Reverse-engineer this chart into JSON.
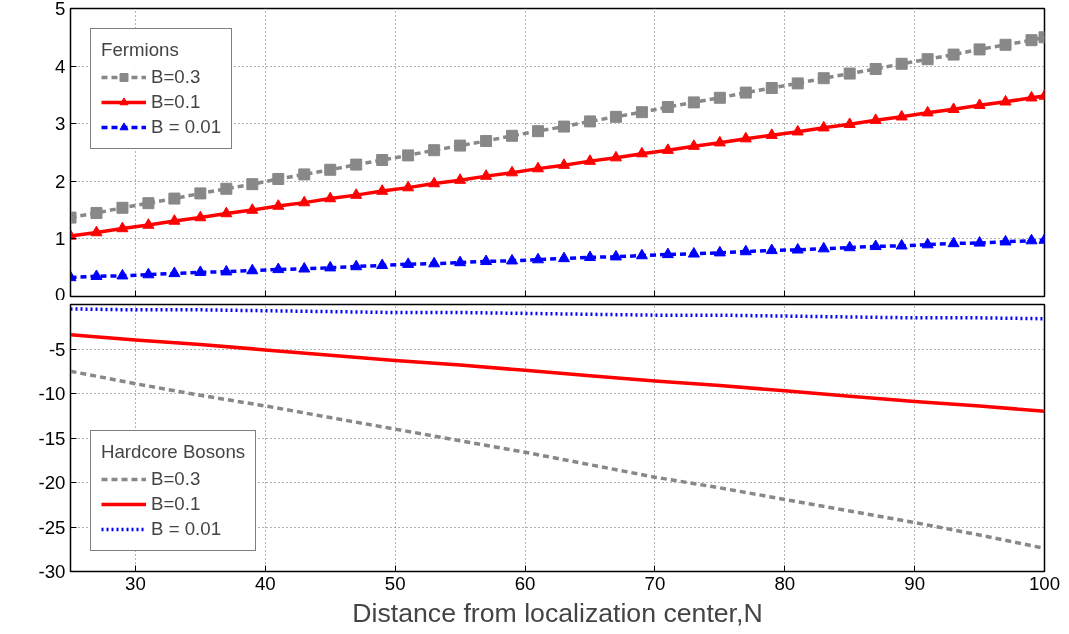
{
  "chart_data": [
    {
      "type": "line",
      "legend_title": "Fermions",
      "legend": "top left",
      "grid": true,
      "tick_labels": "y",
      "x": [
        25,
        27,
        29,
        31,
        33,
        35,
        37,
        39,
        41,
        43,
        45,
        47,
        49,
        51,
        53,
        55,
        57,
        59,
        61,
        63,
        65,
        67,
        69,
        71,
        73,
        75,
        77,
        79,
        81,
        83,
        85,
        87,
        89,
        91,
        93,
        95,
        97,
        99,
        100
      ],
      "xlim": [
        25,
        100
      ],
      "xticks": [
        30,
        40,
        50,
        60,
        70,
        80,
        90,
        100
      ],
      "ylim": [
        0,
        5
      ],
      "yticks": [
        0,
        1,
        2,
        3,
        4,
        5
      ],
      "series": [
        {
          "name": "B=0.3",
          "color": "#888888",
          "marker": "square",
          "line_style": "dashed",
          "values": [
            1.37,
            1.45,
            1.54,
            1.62,
            1.7,
            1.79,
            1.87,
            1.95,
            2.04,
            2.12,
            2.2,
            2.29,
            2.37,
            2.45,
            2.54,
            2.62,
            2.7,
            2.79,
            2.87,
            2.95,
            3.04,
            3.12,
            3.2,
            3.29,
            3.37,
            3.45,
            3.54,
            3.62,
            3.7,
            3.79,
            3.87,
            3.95,
            4.04,
            4.12,
            4.2,
            4.29,
            4.37,
            4.45,
            4.5
          ]
        },
        {
          "name": "B=0.1",
          "color": "#ff0000",
          "marker": "triangle",
          "line_style": "solid",
          "values": [
            1.05,
            1.11,
            1.18,
            1.24,
            1.31,
            1.37,
            1.44,
            1.5,
            1.57,
            1.63,
            1.7,
            1.76,
            1.83,
            1.89,
            1.96,
            2.02,
            2.09,
            2.15,
            2.22,
            2.28,
            2.35,
            2.41,
            2.48,
            2.54,
            2.61,
            2.67,
            2.74,
            2.8,
            2.86,
            2.93,
            2.99,
            3.06,
            3.12,
            3.19,
            3.25,
            3.32,
            3.38,
            3.45,
            3.48
          ]
        },
        {
          "name": "B = 0.01",
          "color": "#0000ff",
          "marker": "triangle",
          "line_style": "dashed",
          "values": [
            0.33,
            0.35,
            0.36,
            0.38,
            0.4,
            0.42,
            0.43,
            0.45,
            0.47,
            0.48,
            0.5,
            0.52,
            0.54,
            0.56,
            0.57,
            0.59,
            0.61,
            0.62,
            0.64,
            0.66,
            0.68,
            0.69,
            0.71,
            0.73,
            0.74,
            0.76,
            0.78,
            0.8,
            0.81,
            0.83,
            0.85,
            0.87,
            0.88,
            0.9,
            0.92,
            0.93,
            0.95,
            0.97,
            0.98
          ]
        }
      ]
    },
    {
      "type": "line",
      "legend_title": "Hardcore Bosons",
      "legend": "bottom left",
      "grid": true,
      "xlabel": "Distance from localization center,N",
      "x": [
        25,
        30,
        35,
        40,
        45,
        50,
        55,
        60,
        65,
        70,
        75,
        80,
        85,
        90,
        95,
        100
      ],
      "xlim": [
        25,
        100
      ],
      "xticks": [
        30,
        40,
        50,
        60,
        70,
        80,
        90,
        100
      ],
      "ylim": [
        -30,
        0
      ],
      "yticks": [
        -30,
        -25,
        -20,
        -15,
        -10,
        -5
      ],
      "series": [
        {
          "name": "B=0.3",
          "color": "#888888",
          "marker": "none",
          "line_style": "dashed",
          "values": [
            -7.5,
            -8.9,
            -10.2,
            -11.4,
            -12.7,
            -14.0,
            -15.3,
            -16.6,
            -18.0,
            -19.4,
            -20.6,
            -21.9,
            -23.2,
            -24.5,
            -25.9,
            -27.4
          ]
        },
        {
          "name": "B=0.1",
          "color": "#ff0000",
          "marker": "none",
          "line_style": "solid",
          "values": [
            -3.4,
            -4.0,
            -4.5,
            -5.1,
            -5.7,
            -6.3,
            -6.8,
            -7.4,
            -8.0,
            -8.6,
            -9.1,
            -9.7,
            -10.3,
            -10.9,
            -11.4,
            -12.0
          ]
        },
        {
          "name": "B = 0.01",
          "color": "#0000ff",
          "marker": "none",
          "line_style": "dotted",
          "values": [
            -0.5,
            -0.6,
            -0.6,
            -0.7,
            -0.8,
            -0.9,
            -0.9,
            -1.0,
            -1.1,
            -1.2,
            -1.2,
            -1.3,
            -1.4,
            -1.5,
            -1.5,
            -1.6
          ]
        }
      ]
    }
  ]
}
